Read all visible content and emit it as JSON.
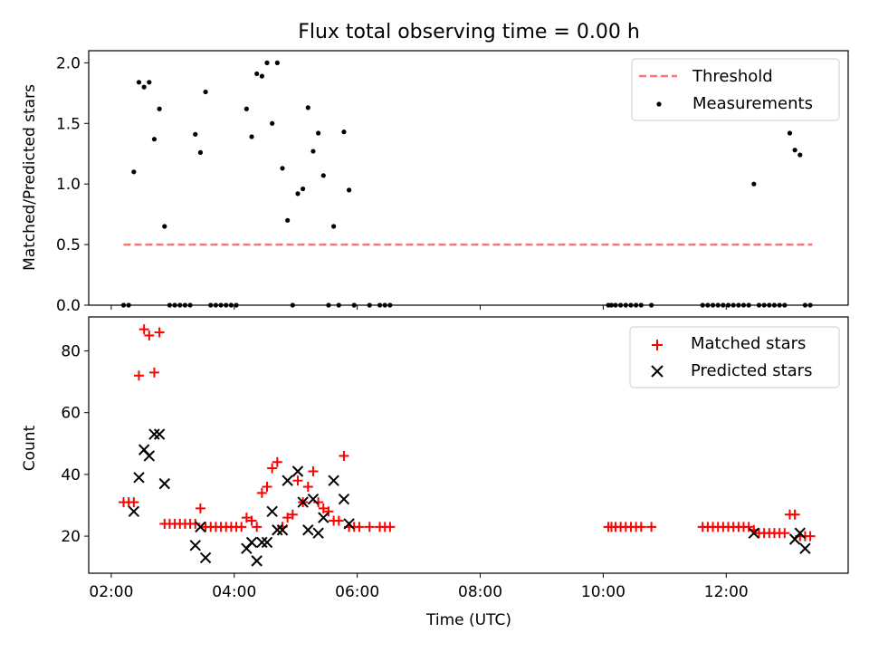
{
  "title": "Flux total observing time = 0.00 h",
  "colors": {
    "threshold": "#ff7575",
    "measurement": "#000000",
    "matched": "#ff0000",
    "predicted": "#000000"
  },
  "chart_data": [
    {
      "type": "scatter",
      "ylabel": "Matched/Predicted stars",
      "ylim": [
        0,
        2.1
      ],
      "y_ticks": [
        "0.0",
        "0.5",
        "1.0",
        "1.5",
        "2.0"
      ],
      "legend": {
        "position": "top-right",
        "entries": [
          "Threshold",
          "Measurements"
        ]
      },
      "threshold": {
        "name": "Threshold",
        "value": 0.5,
        "x_range": [
          "02:12",
          "13:24"
        ]
      },
      "series": [
        {
          "name": "Measurements",
          "points": [
            [
              "02:12",
              0
            ],
            [
              "02:17",
              0
            ],
            [
              "02:22",
              1.1
            ],
            [
              "02:27",
              1.84
            ],
            [
              "02:32",
              1.8
            ],
            [
              "02:37",
              1.84
            ],
            [
              "02:42",
              1.37
            ],
            [
              "02:47",
              1.62
            ],
            [
              "02:52",
              0.65
            ],
            [
              "02:57",
              0
            ],
            [
              "03:02",
              0
            ],
            [
              "03:07",
              0
            ],
            [
              "03:12",
              0
            ],
            [
              "03:17",
              0
            ],
            [
              "03:22",
              1.41
            ],
            [
              "03:27",
              1.26
            ],
            [
              "03:32",
              1.76
            ],
            [
              "03:37",
              0
            ],
            [
              "03:42",
              0
            ],
            [
              "03:47",
              0
            ],
            [
              "03:52",
              0
            ],
            [
              "03:57",
              0
            ],
            [
              "04:02",
              0
            ],
            [
              "04:12",
              1.62
            ],
            [
              "04:17",
              1.39
            ],
            [
              "04:22",
              1.91
            ],
            [
              "04:27",
              1.89
            ],
            [
              "04:32",
              2.0
            ],
            [
              "04:37",
              1.5
            ],
            [
              "04:42",
              2.0
            ],
            [
              "04:47",
              1.13
            ],
            [
              "04:52",
              0.7
            ],
            [
              "04:57",
              0
            ],
            [
              "05:02",
              0.92
            ],
            [
              "05:07",
              0.96
            ],
            [
              "05:12",
              1.63
            ],
            [
              "05:17",
              1.27
            ],
            [
              "05:22",
              1.42
            ],
            [
              "05:27",
              1.07
            ],
            [
              "05:32",
              0
            ],
            [
              "05:37",
              0.65
            ],
            [
              "05:42",
              0
            ],
            [
              "05:47",
              1.43
            ],
            [
              "05:52",
              0.95
            ],
            [
              "05:57",
              0
            ],
            [
              "06:12",
              0
            ],
            [
              "06:22",
              0
            ],
            [
              "06:27",
              0
            ],
            [
              "06:32",
              0
            ],
            [
              "10:05",
              0
            ],
            [
              "10:08",
              0
            ],
            [
              "10:12",
              0
            ],
            [
              "10:17",
              0
            ],
            [
              "10:22",
              0
            ],
            [
              "10:27",
              0
            ],
            [
              "10:32",
              0
            ],
            [
              "10:37",
              0
            ],
            [
              "10:47",
              0
            ],
            [
              "11:37",
              0
            ],
            [
              "11:42",
              0
            ],
            [
              "11:47",
              0
            ],
            [
              "11:52",
              0
            ],
            [
              "11:57",
              0
            ],
            [
              "12:02",
              0
            ],
            [
              "12:07",
              0
            ],
            [
              "12:12",
              0
            ],
            [
              "12:17",
              0
            ],
            [
              "12:22",
              0
            ],
            [
              "12:27",
              1.0
            ],
            [
              "12:32",
              0
            ],
            [
              "12:37",
              0
            ],
            [
              "12:42",
              0
            ],
            [
              "12:47",
              0
            ],
            [
              "12:52",
              0
            ],
            [
              "12:57",
              0
            ],
            [
              "13:02",
              1.42
            ],
            [
              "13:07",
              1.28
            ],
            [
              "13:12",
              1.24
            ],
            [
              "13:17",
              0
            ],
            [
              "13:22",
              0
            ]
          ]
        }
      ]
    },
    {
      "type": "scatter",
      "xlabel": "Time (UTC)",
      "ylabel": "Count",
      "ylim": [
        8,
        91
      ],
      "y_ticks": [
        "20",
        "40",
        "60",
        "80"
      ],
      "x_ticks": [
        "02:00",
        "04:00",
        "06:00",
        "08:00",
        "10:00",
        "12:00"
      ],
      "xlim": [
        "01:38",
        "13:59"
      ],
      "legend": {
        "position": "top-right",
        "entries": [
          "Matched stars",
          "Predicted stars"
        ]
      },
      "series": [
        {
          "name": "Matched stars",
          "marker": "+",
          "points": [
            [
              "02:12",
              31
            ],
            [
              "02:17",
              31
            ],
            [
              "02:22",
              31
            ],
            [
              "02:27",
              72
            ],
            [
              "02:32",
              87
            ],
            [
              "02:37",
              85
            ],
            [
              "02:42",
              73
            ],
            [
              "02:47",
              86
            ],
            [
              "02:52",
              24
            ],
            [
              "02:57",
              24
            ],
            [
              "03:02",
              24
            ],
            [
              "03:07",
              24
            ],
            [
              "03:12",
              24
            ],
            [
              "03:17",
              24
            ],
            [
              "03:22",
              24
            ],
            [
              "03:27",
              29
            ],
            [
              "03:32",
              23
            ],
            [
              "03:37",
              23
            ],
            [
              "03:42",
              23
            ],
            [
              "03:47",
              23
            ],
            [
              "03:52",
              23
            ],
            [
              "03:57",
              23
            ],
            [
              "04:02",
              23
            ],
            [
              "04:07",
              23
            ],
            [
              "04:12",
              26
            ],
            [
              "04:17",
              25
            ],
            [
              "04:22",
              23
            ],
            [
              "04:27",
              34
            ],
            [
              "04:32",
              36
            ],
            [
              "04:37",
              42
            ],
            [
              "04:42",
              44
            ],
            [
              "04:47",
              23
            ],
            [
              "04:52",
              26
            ],
            [
              "04:57",
              27
            ],
            [
              "05:02",
              38
            ],
            [
              "05:07",
              31
            ],
            [
              "05:12",
              36
            ],
            [
              "05:17",
              41
            ],
            [
              "05:22",
              31
            ],
            [
              "05:27",
              29
            ],
            [
              "05:32",
              28
            ],
            [
              "05:37",
              25
            ],
            [
              "05:42",
              25
            ],
            [
              "05:47",
              46
            ],
            [
              "05:52",
              23
            ],
            [
              "05:57",
              23
            ],
            [
              "06:02",
              23
            ],
            [
              "06:12",
              23
            ],
            [
              "06:22",
              23
            ],
            [
              "06:27",
              23
            ],
            [
              "06:32",
              23
            ],
            [
              "10:05",
              23
            ],
            [
              "10:08",
              23
            ],
            [
              "10:12",
              23
            ],
            [
              "10:17",
              23
            ],
            [
              "10:22",
              23
            ],
            [
              "10:27",
              23
            ],
            [
              "10:32",
              23
            ],
            [
              "10:37",
              23
            ],
            [
              "10:47",
              23
            ],
            [
              "11:37",
              23
            ],
            [
              "11:42",
              23
            ],
            [
              "11:47",
              23
            ],
            [
              "11:52",
              23
            ],
            [
              "11:57",
              23
            ],
            [
              "12:02",
              23
            ],
            [
              "12:07",
              23
            ],
            [
              "12:12",
              23
            ],
            [
              "12:17",
              23
            ],
            [
              "12:22",
              23
            ],
            [
              "12:27",
              22
            ],
            [
              "12:32",
              21
            ],
            [
              "12:37",
              21
            ],
            [
              "12:42",
              21
            ],
            [
              "12:47",
              21
            ],
            [
              "12:52",
              21
            ],
            [
              "12:57",
              21
            ],
            [
              "13:02",
              27
            ],
            [
              "13:07",
              27
            ],
            [
              "13:12",
              20
            ],
            [
              "13:17",
              20
            ],
            [
              "13:22",
              20
            ]
          ]
        },
        {
          "name": "Predicted stars",
          "marker": "x",
          "points": [
            [
              "02:22",
              28
            ],
            [
              "02:27",
              39
            ],
            [
              "02:32",
              48
            ],
            [
              "02:37",
              46
            ],
            [
              "02:42",
              53
            ],
            [
              "02:47",
              53
            ],
            [
              "02:52",
              37
            ],
            [
              "03:22",
              17
            ],
            [
              "03:27",
              23
            ],
            [
              "03:32",
              13
            ],
            [
              "04:12",
              16
            ],
            [
              "04:17",
              18
            ],
            [
              "04:22",
              12
            ],
            [
              "04:27",
              18
            ],
            [
              "04:32",
              18
            ],
            [
              "04:37",
              28
            ],
            [
              "04:42",
              22
            ],
            [
              "04:47",
              22
            ],
            [
              "04:52",
              38
            ],
            [
              "05:02",
              41
            ],
            [
              "05:07",
              31
            ],
            [
              "05:12",
              22
            ],
            [
              "05:17",
              32
            ],
            [
              "05:22",
              21
            ],
            [
              "05:27",
              26
            ],
            [
              "05:37",
              38
            ],
            [
              "05:47",
              32
            ],
            [
              "05:52",
              24
            ],
            [
              "12:27",
              21
            ],
            [
              "13:07",
              19
            ],
            [
              "13:12",
              21
            ],
            [
              "13:17",
              16
            ]
          ]
        }
      ]
    }
  ]
}
